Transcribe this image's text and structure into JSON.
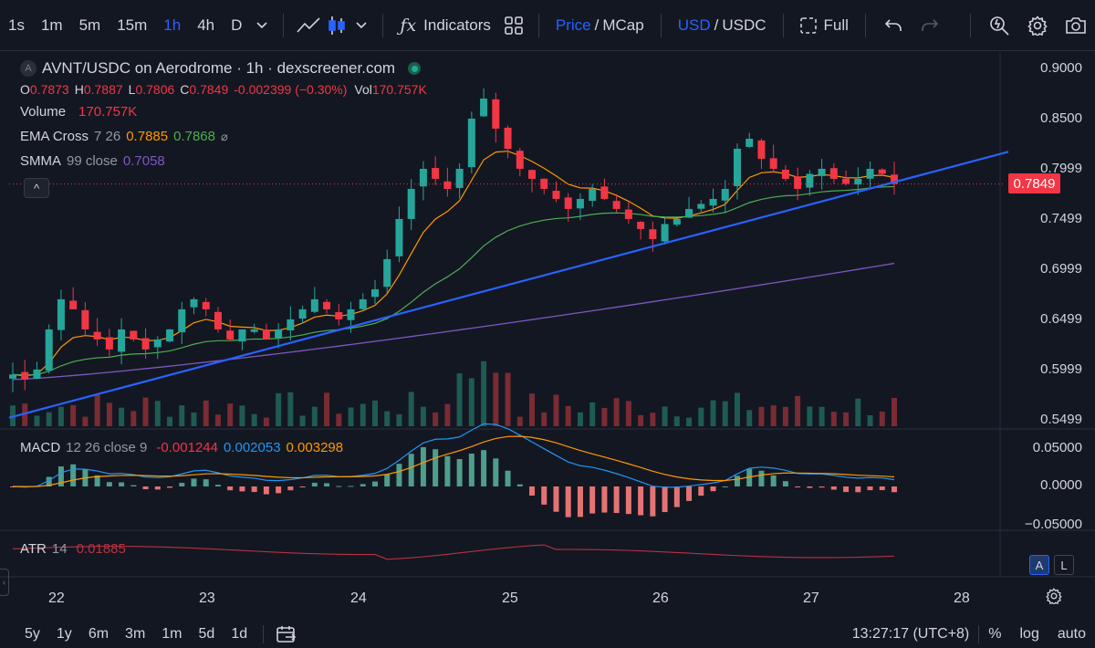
{
  "toolbar": {
    "timeframes": [
      "1s",
      "1m",
      "5m",
      "15m",
      "1h",
      "4h",
      "D"
    ],
    "active_timeframe": "1h",
    "indicators_label": "Indicators",
    "price_label": "Price",
    "mcap_label": "MCap",
    "usd_label": "USD",
    "usdc_label": "USDC",
    "full_label": "Full"
  },
  "legend": {
    "symbol_badge": "A",
    "title": "AVNT/USDC on Aerodrome · 1h · dexscreener.com",
    "o_label": "O",
    "o_value": "0.7873",
    "h_label": "H",
    "h_value": "0.7887",
    "l_label": "L",
    "l_value": "0.7806",
    "c_label": "C",
    "c_value": "0.7849",
    "change": "-0.002399 (−0.30%)",
    "vol_label": "Vol",
    "vol_value": "170.757K",
    "volume_label": "Volume",
    "volume_value": "170.757K",
    "ema_label": "EMA Cross",
    "ema_params": "7 26",
    "ema_fast": "0.7885",
    "ema_slow": "0.7868",
    "smma_label": "SMMA",
    "smma_params": "99 close",
    "smma_value": "0.7058",
    "collapse_icon": "^"
  },
  "macd_legend": {
    "label": "MACD",
    "params": "12 26 close 9",
    "v1": "-0.001244",
    "v2": "0.002053",
    "v3": "0.003298"
  },
  "atr_legend": {
    "label": "ATR",
    "params": "14",
    "value": "0.01885"
  },
  "price_axis": [
    "0.9000",
    "0.8500",
    "0.7999",
    "0.7499",
    "0.6999",
    "0.6499",
    "0.5999",
    "0.5499"
  ],
  "macd_axis": [
    "0.05000",
    "0.0000",
    "−0.05000"
  ],
  "last_price": "0.7849",
  "date_axis": [
    "22",
    "23",
    "24",
    "25",
    "26",
    "27",
    "28"
  ],
  "scale_buttons": {
    "a": "A",
    "l": "L"
  },
  "bottom": {
    "ranges": [
      "5y",
      "1y",
      "6m",
      "3m",
      "1m",
      "5d",
      "1d"
    ],
    "time": "13:27:17 (UTC+8)",
    "percent": "%",
    "log": "log",
    "auto": "auto"
  },
  "colors": {
    "up": "#26a69a",
    "down": "#f23645",
    "ema_fast": "#ff9800",
    "ema_slow": "#4caf50",
    "smma": "#7e57c2",
    "trendline": "#2962ff"
  },
  "chart_data": {
    "type": "candlestick",
    "price_range": [
      0.5499,
      0.9
    ],
    "series_close": [
      0.595,
      0.59,
      0.6,
      0.64,
      0.67,
      0.66,
      0.64,
      0.63,
      0.62,
      0.64,
      0.63,
      0.62,
      0.63,
      0.64,
      0.66,
      0.67,
      0.66,
      0.64,
      0.63,
      0.64,
      0.64,
      0.63,
      0.64,
      0.65,
      0.66,
      0.67,
      0.66,
      0.65,
      0.66,
      0.67,
      0.68,
      0.71,
      0.75,
      0.78,
      0.8,
      0.79,
      0.78,
      0.8,
      0.85,
      0.87,
      0.84,
      0.82,
      0.8,
      0.79,
      0.78,
      0.77,
      0.76,
      0.77,
      0.78,
      0.77,
      0.76,
      0.75,
      0.74,
      0.73,
      0.745,
      0.75,
      0.76,
      0.765,
      0.77,
      0.78,
      0.82,
      0.83,
      0.81,
      0.8,
      0.79,
      0.78,
      0.795,
      0.8,
      0.79,
      0.785,
      0.79,
      0.8,
      0.795,
      0.7849
    ],
    "smma_start": 0.59,
    "smma_end": 0.7058,
    "trendline": [
      [
        0,
        0.552
      ],
      [
        1,
        0.817
      ]
    ]
  }
}
